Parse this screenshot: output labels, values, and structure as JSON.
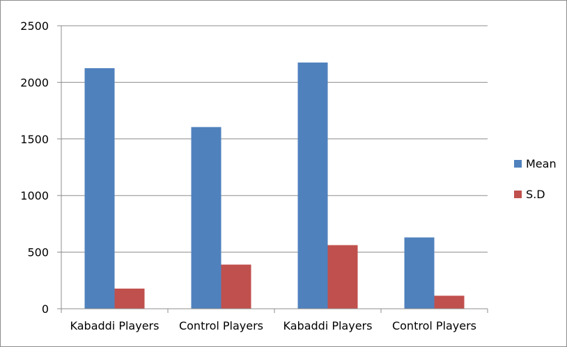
{
  "chart_data": {
    "type": "bar",
    "categories": [
      "Kabaddi Players",
      "Control Players",
      "Kabaddi Players",
      "Control Players"
    ],
    "series": [
      {
        "name": "Mean",
        "values": [
          2125,
          1605,
          2175,
          630
        ],
        "color": "#4f81bd"
      },
      {
        "name": "S.D",
        "values": [
          178,
          390,
          562,
          115
        ],
        "color": "#c0504d"
      }
    ],
    "title": "",
    "xlabel": "",
    "ylabel": "",
    "ylim": [
      0,
      2500
    ],
    "yticks": [
      0,
      500,
      1000,
      1500,
      2000,
      2500
    ],
    "grid": true,
    "legend_position": "right"
  }
}
